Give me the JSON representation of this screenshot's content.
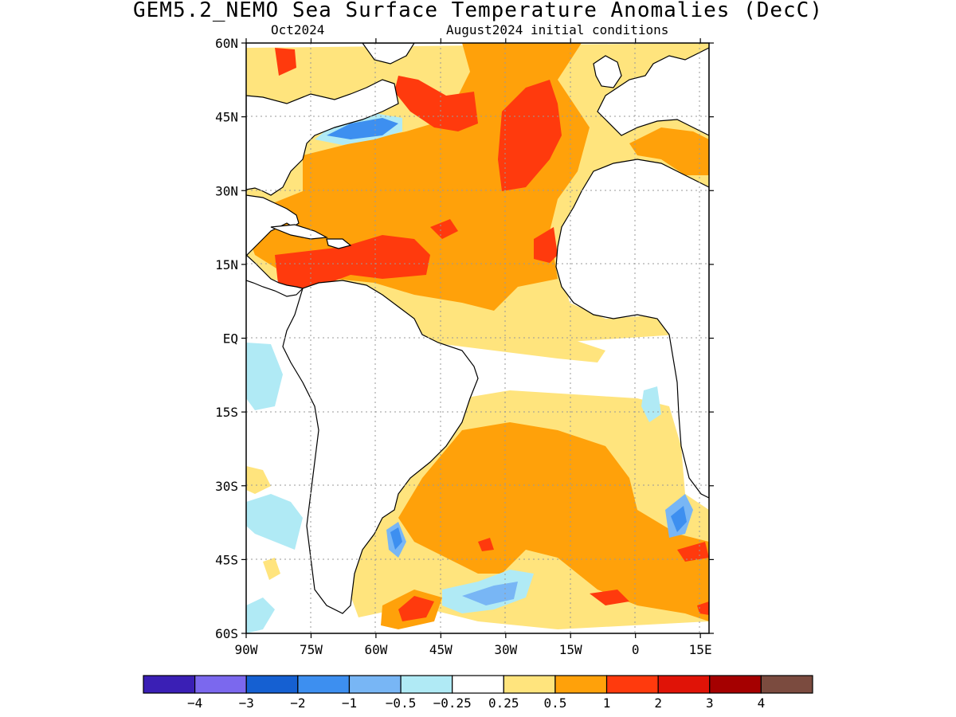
{
  "title": "GEM5.2_NEMO Sea Surface Temperature Anomalies (DecC)",
  "subtitle_left": "Oct2024",
  "subtitle_right": "August2024 initial conditions",
  "map": {
    "lat_ticks": [
      "60N",
      "45N",
      "30N",
      "15N",
      "EQ",
      "15S",
      "30S",
      "45S",
      "60S"
    ],
    "lon_ticks": [
      "90W",
      "75W",
      "60W",
      "45W",
      "30W",
      "15W",
      "0",
      "15E"
    ],
    "lon_range": [
      -90,
      17
    ],
    "lat_range": [
      -60,
      60
    ],
    "gridlines": "dotted"
  },
  "colorbar": {
    "colors": [
      "#3a1fb5",
      "#7b68ee",
      "#1560d2",
      "#3d8ff0",
      "#78b6f5",
      "#b0eaf5",
      "#ffffff",
      "#ffe47d",
      "#ffa10a",
      "#ff3a0d",
      "#e01307",
      "#a50000",
      "#7b4b3f"
    ],
    "labels": [
      "−4",
      "−3",
      "−2",
      "−1",
      "−0.5",
      "−0.25",
      "0.25",
      "0.5",
      "1",
      "2",
      "3",
      "4"
    ]
  }
}
